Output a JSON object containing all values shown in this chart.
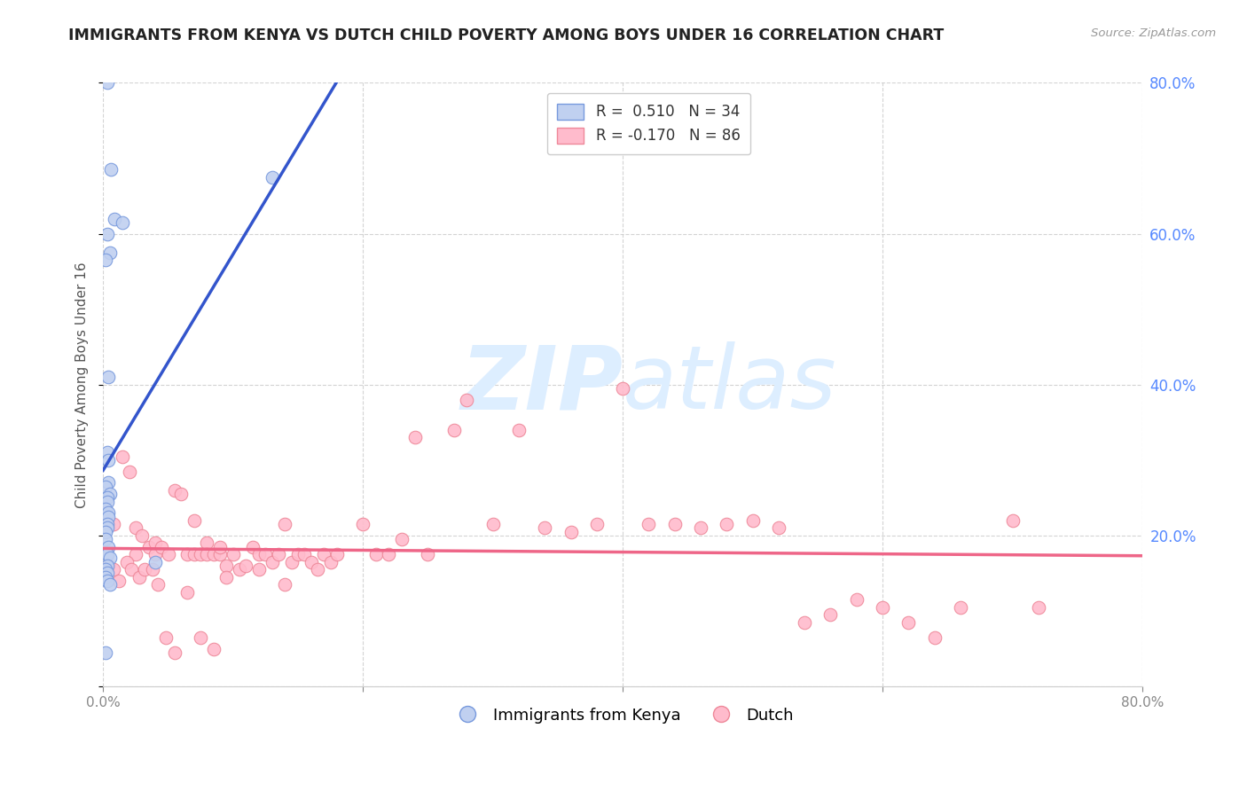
{
  "title": "IMMIGRANTS FROM KENYA VS DUTCH CHILD POVERTY AMONG BOYS UNDER 16 CORRELATION CHART",
  "source": "Source: ZipAtlas.com",
  "ylabel": "Child Poverty Among Boys Under 16",
  "xlim": [
    0.0,
    0.8
  ],
  "ylim": [
    0.0,
    0.8
  ],
  "background_color": "#ffffff",
  "grid_color": "#c8c8c8",
  "title_color": "#222222",
  "right_axis_color": "#5588ff",
  "kenya_color": "#c0d0f0",
  "kenya_edge_color": "#7799dd",
  "dutch_color": "#ffbbcc",
  "dutch_edge_color": "#ee8899",
  "kenya_line_color": "#3355cc",
  "dutch_line_color": "#ee6688",
  "legend_kenya_label": "Immigrants from Kenya",
  "legend_dutch_label": "Dutch",
  "R_kenya": 0.51,
  "N_kenya": 34,
  "R_dutch": -0.17,
  "N_dutch": 86,
  "kenya_x": [
    0.003,
    0.006,
    0.009,
    0.015,
    0.003,
    0.005,
    0.002,
    0.004,
    0.003,
    0.004,
    0.004,
    0.002,
    0.005,
    0.003,
    0.003,
    0.002,
    0.004,
    0.004,
    0.003,
    0.003,
    0.002,
    0.002,
    0.004,
    0.003,
    0.005,
    0.13,
    0.003,
    0.002,
    0.003,
    0.002,
    0.003,
    0.04,
    0.002,
    0.005
  ],
  "kenya_y": [
    0.8,
    0.685,
    0.62,
    0.615,
    0.6,
    0.575,
    0.565,
    0.41,
    0.31,
    0.3,
    0.27,
    0.265,
    0.255,
    0.25,
    0.245,
    0.235,
    0.23,
    0.225,
    0.215,
    0.21,
    0.205,
    0.195,
    0.185,
    0.175,
    0.17,
    0.675,
    0.16,
    0.155,
    0.15,
    0.145,
    0.14,
    0.165,
    0.045,
    0.135
  ],
  "dutch_x": [
    0.008,
    0.015,
    0.02,
    0.025,
    0.025,
    0.03,
    0.035,
    0.04,
    0.04,
    0.045,
    0.05,
    0.055,
    0.06,
    0.065,
    0.07,
    0.07,
    0.075,
    0.08,
    0.08,
    0.085,
    0.09,
    0.09,
    0.095,
    0.1,
    0.105,
    0.11,
    0.115,
    0.12,
    0.125,
    0.13,
    0.135,
    0.14,
    0.145,
    0.15,
    0.155,
    0.16,
    0.165,
    0.17,
    0.175,
    0.18,
    0.2,
    0.21,
    0.22,
    0.23,
    0.24,
    0.25,
    0.27,
    0.28,
    0.3,
    0.32,
    0.34,
    0.36,
    0.38,
    0.4,
    0.42,
    0.44,
    0.46,
    0.48,
    0.5,
    0.52,
    0.54,
    0.56,
    0.58,
    0.6,
    0.62,
    0.64,
    0.66,
    0.7,
    0.72,
    0.004,
    0.008,
    0.012,
    0.018,
    0.022,
    0.028,
    0.032,
    0.038,
    0.042,
    0.048,
    0.055,
    0.065,
    0.075,
    0.085,
    0.095,
    0.12,
    0.14
  ],
  "dutch_y": [
    0.215,
    0.305,
    0.285,
    0.175,
    0.21,
    0.2,
    0.185,
    0.19,
    0.175,
    0.185,
    0.175,
    0.26,
    0.255,
    0.175,
    0.22,
    0.175,
    0.175,
    0.19,
    0.175,
    0.175,
    0.175,
    0.185,
    0.16,
    0.175,
    0.155,
    0.16,
    0.185,
    0.175,
    0.175,
    0.165,
    0.175,
    0.215,
    0.165,
    0.175,
    0.175,
    0.165,
    0.155,
    0.175,
    0.165,
    0.175,
    0.215,
    0.175,
    0.175,
    0.195,
    0.33,
    0.175,
    0.34,
    0.38,
    0.215,
    0.34,
    0.21,
    0.205,
    0.215,
    0.395,
    0.215,
    0.215,
    0.21,
    0.215,
    0.22,
    0.21,
    0.085,
    0.095,
    0.115,
    0.105,
    0.085,
    0.065,
    0.105,
    0.22,
    0.105,
    0.16,
    0.155,
    0.14,
    0.165,
    0.155,
    0.145,
    0.155,
    0.155,
    0.135,
    0.065,
    0.045,
    0.125,
    0.065,
    0.05,
    0.145,
    0.155,
    0.135
  ],
  "watermark_zip": "ZIP",
  "watermark_atlas": "atlas",
  "watermark_color": "#ddeeff"
}
